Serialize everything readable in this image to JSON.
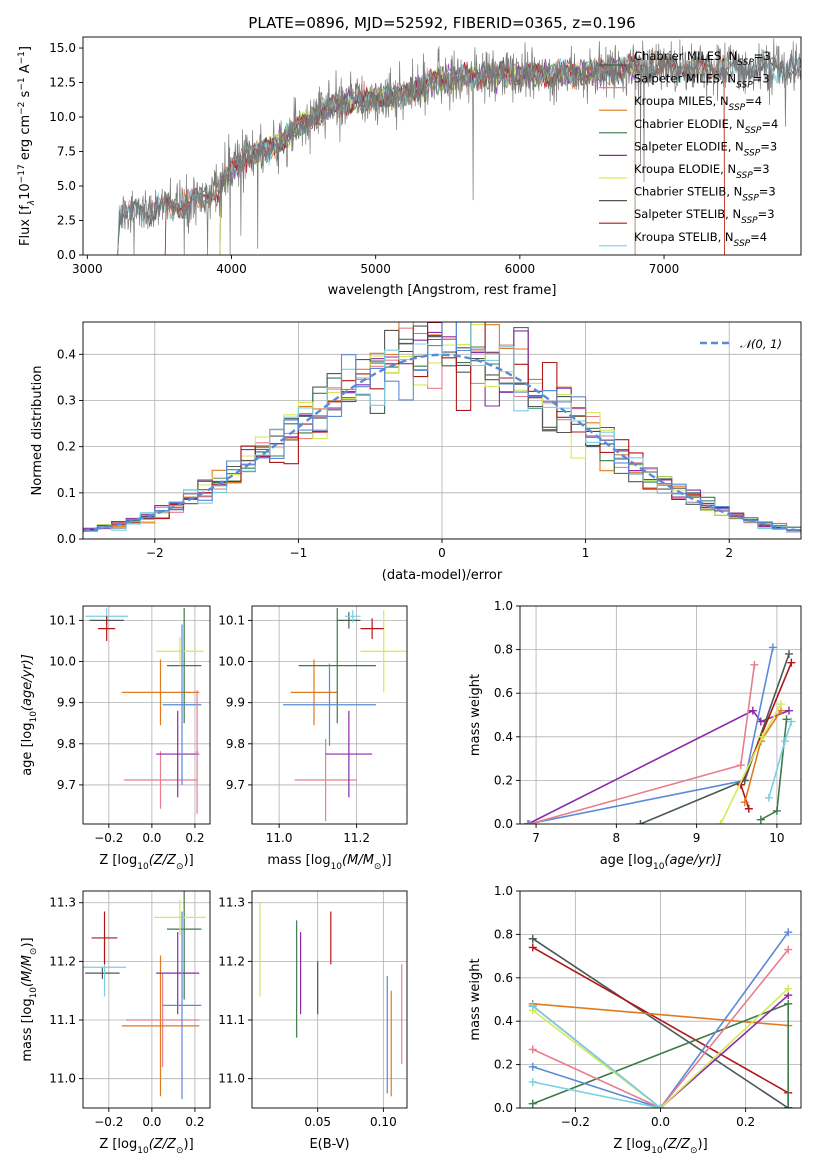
{
  "colors": {
    "Chabrier MILES": "#4a5a58",
    "Salpeter MILES": "#e87d8e",
    "Kroupa MILES": "#e07a1e",
    "Chabrier ELODIE": "#3f7a4a",
    "Salpeter ELODIE": "#8a2aa8",
    "Kroupa ELODIE": "#d4ea5a",
    "Chabrier STELIB": "#555555",
    "Salpeter STELIB": "#b01818",
    "Kroupa STELIB": "#7ad0e0",
    "blue": "#5b8ad8",
    "orange": "#e07a1e"
  },
  "chart_data": [
    {
      "id": "spectrum",
      "type": "line",
      "title": "PLATE=0896, MJD=52592, FIBERID=0365, z=0.196",
      "xlabel": "wavelength [Angstrom, rest frame]",
      "ylabel": "Flux [f",
      "ylabel_sub": "λ",
      "ylabel_rest": "10",
      "ylabel_sup1": "−17",
      "ylabel_unit": " erg cm",
      "ylabel_sup2": "−2",
      "ylabel_unit2": " s",
      "ylabel_sup3": "−1",
      "ylabel_unit3": " A",
      "ylabel_sup4": "−1",
      "ylabel_end": "]",
      "xlim": [
        2970,
        7950
      ],
      "ylim": [
        0,
        15.8
      ],
      "xticks": [
        3000,
        4000,
        5000,
        6000,
        7000
      ],
      "yticks": [
        0.0,
        2.5,
        5.0,
        7.5,
        10.0,
        12.5,
        15.0
      ],
      "ytick_labels": [
        "0.0",
        "2.5",
        "5.0",
        "7.5",
        "10.0",
        "12.5",
        "15.0"
      ],
      "continuum": [
        [
          3210,
          0
        ],
        [
          3220,
          2.7
        ],
        [
          3300,
          3.2
        ],
        [
          3500,
          3.4
        ],
        [
          3700,
          3.8
        ],
        [
          3900,
          4.6
        ],
        [
          4000,
          6.2
        ],
        [
          4100,
          7.2
        ],
        [
          4300,
          7.8
        ],
        [
          4500,
          9.6
        ],
        [
          4700,
          10.8
        ],
        [
          5000,
          11.4
        ],
        [
          5200,
          11.6
        ],
        [
          5400,
          12.6
        ],
        [
          5700,
          13.0
        ],
        [
          6000,
          13.1
        ],
        [
          6300,
          13.1
        ],
        [
          6600,
          13.4
        ],
        [
          6800,
          13.6
        ],
        [
          7200,
          13.6
        ],
        [
          7500,
          13.5
        ]
      ],
      "legend": [
        {
          "name": "Chabrier MILES",
          "label": "Chabrier MILES, N",
          "n": "3"
        },
        {
          "name": "Salpeter MILES",
          "label": "Salpeter MILES, N",
          "n": "3"
        },
        {
          "name": "Kroupa MILES",
          "label": "Kroupa MILES, N",
          "n": "4"
        },
        {
          "name": "Chabrier ELODIE",
          "label": "Chabrier ELODIE, N",
          "n": "4"
        },
        {
          "name": "Salpeter ELODIE",
          "label": "Salpeter ELODIE, N",
          "n": "3"
        },
        {
          "name": "Kroupa ELODIE",
          "label": "Kroupa ELODIE, N",
          "n": "3"
        },
        {
          "name": "Chabrier STELIB",
          "label": "Chabrier STELIB, N",
          "n": "3"
        },
        {
          "name": "Salpeter STELIB",
          "label": "Salpeter STELIB, N",
          "n": "3"
        },
        {
          "name": "Kroupa STELIB",
          "label": "Kroupa STELIB, N",
          "n": "4"
        }
      ],
      "legend_sub": "SSP",
      "legend_eq": "="
    },
    {
      "id": "residuals",
      "type": "line",
      "xlabel": "(data-model)/error",
      "ylabel": "Normed distribution",
      "xlim": [
        -2.5,
        2.5
      ],
      "ylim": [
        0,
        0.47
      ],
      "xticks": [
        -2,
        -1,
        0,
        1,
        2
      ],
      "xtick_labels": [
        "−2",
        "−1",
        "0",
        "1",
        "2"
      ],
      "yticks": [
        0.0,
        0.1,
        0.2,
        0.3,
        0.4
      ],
      "ytick_labels": [
        "0.0",
        "0.1",
        "0.2",
        "0.3",
        "0.4"
      ],
      "grid": true,
      "legend": "𝒩(0, 1)",
      "legend_placement": "top-right",
      "bin_width": 0.1
    },
    {
      "id": "Z-age",
      "type": "scatter",
      "xlabel": "Z [log",
      "xlabel_sub": "10",
      "xlabel_rest": "(Z/Z",
      "xlabel_sub2": "⊙",
      "xlabel_end": ")]",
      "ylabel": "age  [log",
      "ylabel_sub": "10",
      "ylabel_rest": "(age/yr)]",
      "xlim": [
        -0.32,
        0.27
      ],
      "ylim": [
        9.605,
        10.135
      ],
      "xticks": [
        -0.2,
        0.0,
        0.2
      ],
      "xtick_labels": [
        "−0.2",
        "0.0",
        "0.2"
      ],
      "yticks": [
        9.7,
        9.8,
        9.9,
        10.0,
        10.1
      ],
      "ytick_labels": [
        "9.7",
        "9.8",
        "9.9",
        "10.0",
        "10.1"
      ],
      "points": [
        {
          "s": "Chabrier MILES",
          "x": -0.21,
          "y": 10.1,
          "xerr": 0.08,
          "yerr": 0.01
        },
        {
          "s": "Salpeter MILES",
          "x": 0.04,
          "y": 9.712,
          "xerr": 0.17,
          "yerr": 0.07
        },
        {
          "s": "Kroupa MILES",
          "x": 0.04,
          "y": 9.925,
          "xerr": 0.18,
          "yerr": 0.08
        },
        {
          "s": "Chabrier ELODIE",
          "x": 0.15,
          "y": 9.99,
          "xerr": 0.08,
          "yerr": 0.14
        },
        {
          "s": "Salpeter ELODIE",
          "x": 0.12,
          "y": 9.775,
          "xerr": 0.1,
          "yerr": 0.105
        },
        {
          "s": "Kroupa ELODIE",
          "x": 0.13,
          "y": 10.025,
          "xerr": 0.11,
          "yerr": 0.035
        },
        {
          "s": "Kroupa STELIB",
          "x": -0.21,
          "y": 10.11,
          "xerr": 0.1,
          "yerr": 0.02
        },
        {
          "s": "Salpeter STELIB",
          "x": -0.21,
          "y": 10.08,
          "xerr": 0.04,
          "yerr": 0.03
        },
        {
          "s": "blue",
          "x": 0.14,
          "y": 9.895,
          "xerr": 0.09,
          "yerr": 0.195
        },
        {
          "s": "Salpeter MILES",
          "x": 0.21,
          "y": 9.78,
          "xerr": 0.005,
          "yerr": 0.15
        }
      ]
    },
    {
      "id": "mass-age",
      "type": "scatter",
      "xlabel": "mass [log",
      "xlabel_sub": "10",
      "xlabel_rest": "(M/M",
      "xlabel_sub2": "⊙",
      "xlabel_end": ")]",
      "xlim": [
        10.93,
        11.33
      ],
      "ylim": [
        9.605,
        10.135
      ],
      "xticks": [
        11.0,
        11.2
      ],
      "xtick_labels": [
        "11.0",
        "11.2"
      ],
      "yticks": [
        9.7,
        9.8,
        9.9,
        10.0,
        10.1
      ],
      "ytick_labels": [
        "9.7",
        "9.8",
        "9.9",
        "10.0",
        "10.1"
      ],
      "points": [
        {
          "s": "Chabrier MILES",
          "x": 11.18,
          "y": 10.1,
          "xerr": 0.03,
          "yerr": 0.02
        },
        {
          "s": "Salpeter MILES",
          "x": 11.12,
          "y": 9.712,
          "xerr": 0.08,
          "yerr": 0.1
        },
        {
          "s": "Kroupa MILES",
          "x": 11.09,
          "y": 9.925,
          "xerr": 0.06,
          "yerr": 0.08
        },
        {
          "s": "Chabrier ELODIE",
          "x": 11.15,
          "y": 9.99,
          "xerr": 0.1,
          "yerr": 0.14
        },
        {
          "s": "Salpeter ELODIE",
          "x": 11.18,
          "y": 9.775,
          "xerr": 0.06,
          "yerr": 0.105
        },
        {
          "s": "Kroupa ELODIE",
          "x": 11.27,
          "y": 10.025,
          "xerr": 0.06,
          "yerr": 0.1
        },
        {
          "s": "Kroupa STELIB",
          "x": 11.19,
          "y": 10.11,
          "xerr": 0.02,
          "yerr": 0.015
        },
        {
          "s": "Salpeter STELIB",
          "x": 11.24,
          "y": 10.08,
          "xerr": 0.03,
          "yerr": 0.025
        },
        {
          "s": "blue",
          "x": 11.13,
          "y": 9.895,
          "xerr": 0.12,
          "yerr": 0.1
        }
      ]
    },
    {
      "id": "age-weight",
      "type": "line",
      "xlabel": "age  [log",
      "xlabel_sub": "10",
      "xlabel_rest": "(age/yr)]",
      "ylabel": "mass weight",
      "xlim": [
        6.8,
        10.3
      ],
      "ylim": [
        0,
        1.0
      ],
      "xticks": [
        7,
        8,
        9,
        10
      ],
      "xtick_labels": [
        "7",
        "8",
        "9",
        "10"
      ],
      "yticks": [
        0.0,
        0.2,
        0.4,
        0.6,
        0.8,
        1.0
      ],
      "ytick_labels": [
        "0.0",
        "0.2",
        "0.4",
        "0.6",
        "0.8",
        "1.0"
      ],
      "grid": true,
      "series": [
        {
          "s": "Salpeter ELODIE",
          "x": [
            6.9,
            9.7,
            9.8,
            10.15
          ],
          "y": [
            0.0,
            0.52,
            0.47,
            0.52
          ]
        },
        {
          "s": "blue",
          "x": [
            6.9,
            9.6,
            9.95
          ],
          "y": [
            0.0,
            0.2,
            0.81
          ]
        },
        {
          "s": "Salpeter MILES",
          "x": [
            6.92,
            9.55,
            9.72
          ],
          "y": [
            0.0,
            0.27,
            0.73
          ]
        },
        {
          "s": "Chabrier MILES",
          "x": [
            8.3,
            9.6,
            10.15
          ],
          "y": [
            0.0,
            0.2,
            0.78
          ]
        },
        {
          "s": "Salpeter STELIB",
          "x": [
            9.65,
            9.55,
            10.18
          ],
          "y": [
            0.07,
            0.18,
            0.74
          ]
        },
        {
          "s": "Kroupa MILES",
          "x": [
            9.6,
            9.8,
            10.05
          ],
          "y": [
            0.1,
            0.38,
            0.52
          ]
        },
        {
          "s": "Kroupa ELODIE",
          "x": [
            9.3,
            9.82,
            10.05
          ],
          "y": [
            0.0,
            0.4,
            0.55
          ]
        },
        {
          "s": "Chabrier ELODIE",
          "x": [
            9.8,
            10.0,
            10.12
          ],
          "y": [
            0.02,
            0.06,
            0.48
          ]
        },
        {
          "s": "Kroupa STELIB",
          "x": [
            9.9,
            10.1,
            10.18
          ],
          "y": [
            0.12,
            0.38,
            0.47
          ]
        }
      ]
    },
    {
      "id": "Z-mass",
      "type": "scatter",
      "xlabel": "Z [log",
      "xlabel_sub": "10",
      "xlabel_rest": "(Z/Z",
      "xlabel_sub2": "⊙",
      "xlabel_end": ")]",
      "ylabel": "mass [log",
      "ylabel_sub": "10",
      "ylabel_rest": "(M/M",
      "ylabel_sub2": "⊙",
      "ylabel_end": ")]",
      "xlim": [
        -0.32,
        0.27
      ],
      "ylim": [
        10.95,
        11.32
      ],
      "xticks": [
        -0.2,
        0.0,
        0.2
      ],
      "xtick_labels": [
        "−0.2",
        "0.0",
        "0.2"
      ],
      "yticks": [
        11.0,
        11.1,
        11.2,
        11.3
      ],
      "ytick_labels": [
        "11.0",
        "11.1",
        "11.2",
        "11.3"
      ],
      "points": [
        {
          "s": "Chabrier MILES",
          "x": -0.23,
          "y": 11.18,
          "xerr": 0.08,
          "yerr": 0.01
        },
        {
          "s": "Salpeter MILES",
          "x": 0.05,
          "y": 11.1,
          "xerr": 0.17,
          "yerr": 0.08
        },
        {
          "s": "Kroupa MILES",
          "x": 0.04,
          "y": 11.09,
          "xerr": 0.18,
          "yerr": 0.12
        },
        {
          "s": "Chabrier ELODIE",
          "x": 0.15,
          "y": 11.255,
          "xerr": 0.08,
          "yerr": 0.12
        },
        {
          "s": "Salpeter ELODIE",
          "x": 0.12,
          "y": 11.18,
          "xerr": 0.1,
          "yerr": 0.07
        },
        {
          "s": "Kroupa ELODIE",
          "x": 0.13,
          "y": 11.275,
          "xerr": 0.12,
          "yerr": 0.03
        },
        {
          "s": "Kroupa STELIB",
          "x": -0.22,
          "y": 11.19,
          "xerr": 0.1,
          "yerr": 0.05
        },
        {
          "s": "Salpeter STELIB",
          "x": -0.22,
          "y": 11.24,
          "xerr": 0.06,
          "yerr": 0.045
        },
        {
          "s": "blue",
          "x": 0.14,
          "y": 11.125,
          "xerr": 0.09,
          "yerr": 0.16
        }
      ]
    },
    {
      "id": "ebv-mass",
      "type": "scatter",
      "xlabel": "E(B-V)",
      "xlim": [
        0.0,
        0.118
      ],
      "ylim": [
        10.95,
        11.32
      ],
      "xticks": [
        0.05,
        0.1
      ],
      "xtick_labels": [
        "0.05",
        "0.10"
      ],
      "yticks": [
        11.0,
        11.1,
        11.2,
        11.3
      ],
      "ytick_labels": [
        "11.0",
        "11.1",
        "11.2",
        "11.3"
      ],
      "points": [
        {
          "s": "Kroupa ELODIE",
          "x": 0.006,
          "y": 11.22,
          "xerr": 0,
          "yerr": 0.08
        },
        {
          "s": "Chabrier ELODIE",
          "x": 0.034,
          "y": 11.17,
          "xerr": 0,
          "yerr": 0.1
        },
        {
          "s": "Salpeter ELODIE",
          "x": 0.037,
          "y": 11.18,
          "xerr": 0,
          "yerr": 0.07
        },
        {
          "s": "Chabrier MILES",
          "x": 0.05,
          "y": 11.155,
          "xerr": 0,
          "yerr": 0.045
        },
        {
          "s": "Salpeter STELIB",
          "x": 0.06,
          "y": 11.24,
          "xerr": 0,
          "yerr": 0.045
        },
        {
          "s": "blue",
          "x": 0.103,
          "y": 11.075,
          "xerr": 0,
          "yerr": 0.1
        },
        {
          "s": "Kroupa MILES",
          "x": 0.106,
          "y": 11.06,
          "xerr": 0,
          "yerr": 0.09
        },
        {
          "s": "Salpeter MILES",
          "x": 0.114,
          "y": 11.11,
          "xerr": 0,
          "yerr": 0.085
        }
      ]
    },
    {
      "id": "Z-weight",
      "type": "line",
      "xlabel": "Z [log",
      "xlabel_sub": "10",
      "xlabel_rest": "(Z/Z",
      "xlabel_sub2": "⊙",
      "xlabel_end": ")]",
      "ylabel": "mass weight",
      "xlim": [
        -0.33,
        0.33
      ],
      "ylim": [
        0,
        1.0
      ],
      "xticks": [
        -0.2,
        0.0,
        0.2
      ],
      "xtick_labels": [
        "−0.2",
        "0.0",
        "0.2"
      ],
      "yticks": [
        0.0,
        0.2,
        0.4,
        0.6,
        0.8,
        1.0
      ],
      "ytick_labels": [
        "0.0",
        "0.2",
        "0.4",
        "0.6",
        "0.8",
        "1.0"
      ],
      "grid": true,
      "series": [
        {
          "s": "Chabrier MILES",
          "x": [
            -0.3,
            0.3
          ],
          "y": [
            0.78,
            0.0
          ]
        },
        {
          "s": "Salpeter STELIB",
          "x": [
            -0.3,
            0.3,
            0.3
          ],
          "y": [
            0.74,
            0.07,
            0.0
          ]
        },
        {
          "s": "orange",
          "x": [
            -0.3,
            0.3
          ],
          "y": [
            0.48,
            0.38
          ]
        },
        {
          "s": "Chabrier ELODIE",
          "x": [
            -0.3,
            0.3,
            0.3
          ],
          "y": [
            0.02,
            0.48,
            0.0
          ]
        },
        {
          "s": "blue",
          "x": [
            -0.3,
            0.0,
            0.3
          ],
          "y": [
            0.19,
            0.0,
            0.81
          ]
        },
        {
          "s": "Salpeter MILES",
          "x": [
            -0.3,
            0.0,
            0.3
          ],
          "y": [
            0.27,
            0.0,
            0.73
          ]
        },
        {
          "s": "Salpeter ELODIE",
          "x": [
            -0.3,
            0.0,
            0.3
          ],
          "y": [
            0.47,
            0.0,
            0.52
          ]
        },
        {
          "s": "Kroupa ELODIE",
          "x": [
            -0.3,
            0.0,
            0.3
          ],
          "y": [
            0.45,
            0.0,
            0.55
          ]
        },
        {
          "s": "Kroupa STELIB",
          "x": [
            -0.3,
            0.0,
            -0.3
          ],
          "y": [
            0.47,
            0.0,
            0.12
          ]
        }
      ]
    }
  ]
}
